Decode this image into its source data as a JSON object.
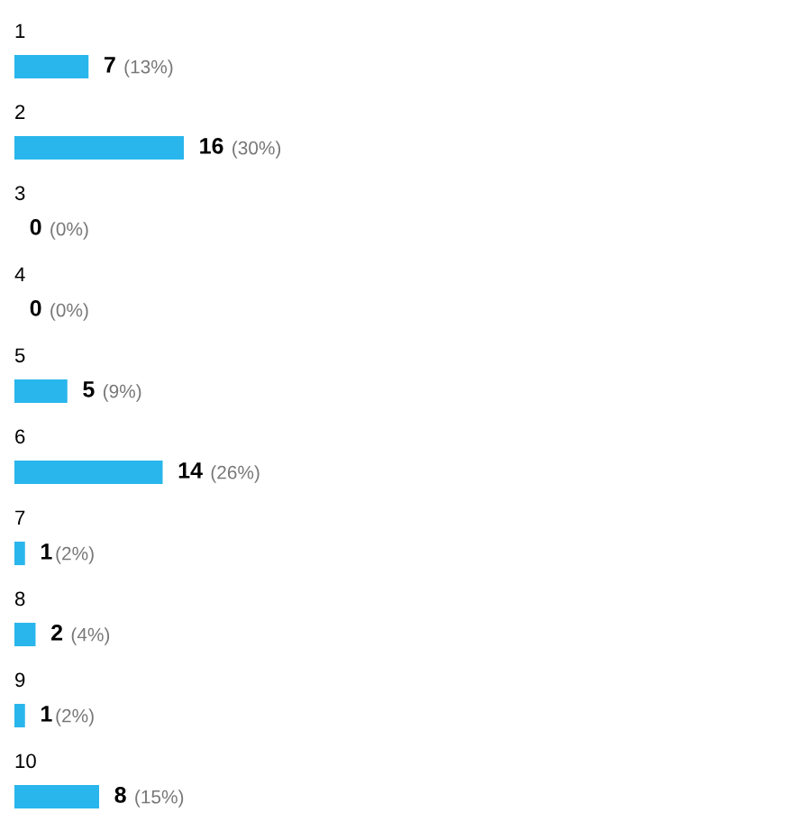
{
  "chart_data": {
    "type": "bar",
    "orientation": "horizontal",
    "categories": [
      "1",
      "2",
      "3",
      "4",
      "5",
      "6",
      "7",
      "8",
      "9",
      "10"
    ],
    "values": [
      7,
      16,
      0,
      0,
      5,
      14,
      1,
      2,
      1,
      8
    ],
    "color": "#29b6ec",
    "value_labels": [
      "7 (13%)",
      "16 (30%)",
      "0 (0%)",
      "0 (0%)",
      "5 (9%)",
      "14 (26%)",
      "1(2%)",
      "2 (4%)",
      "1(2%)",
      "8 (15%)"
    ]
  }
}
